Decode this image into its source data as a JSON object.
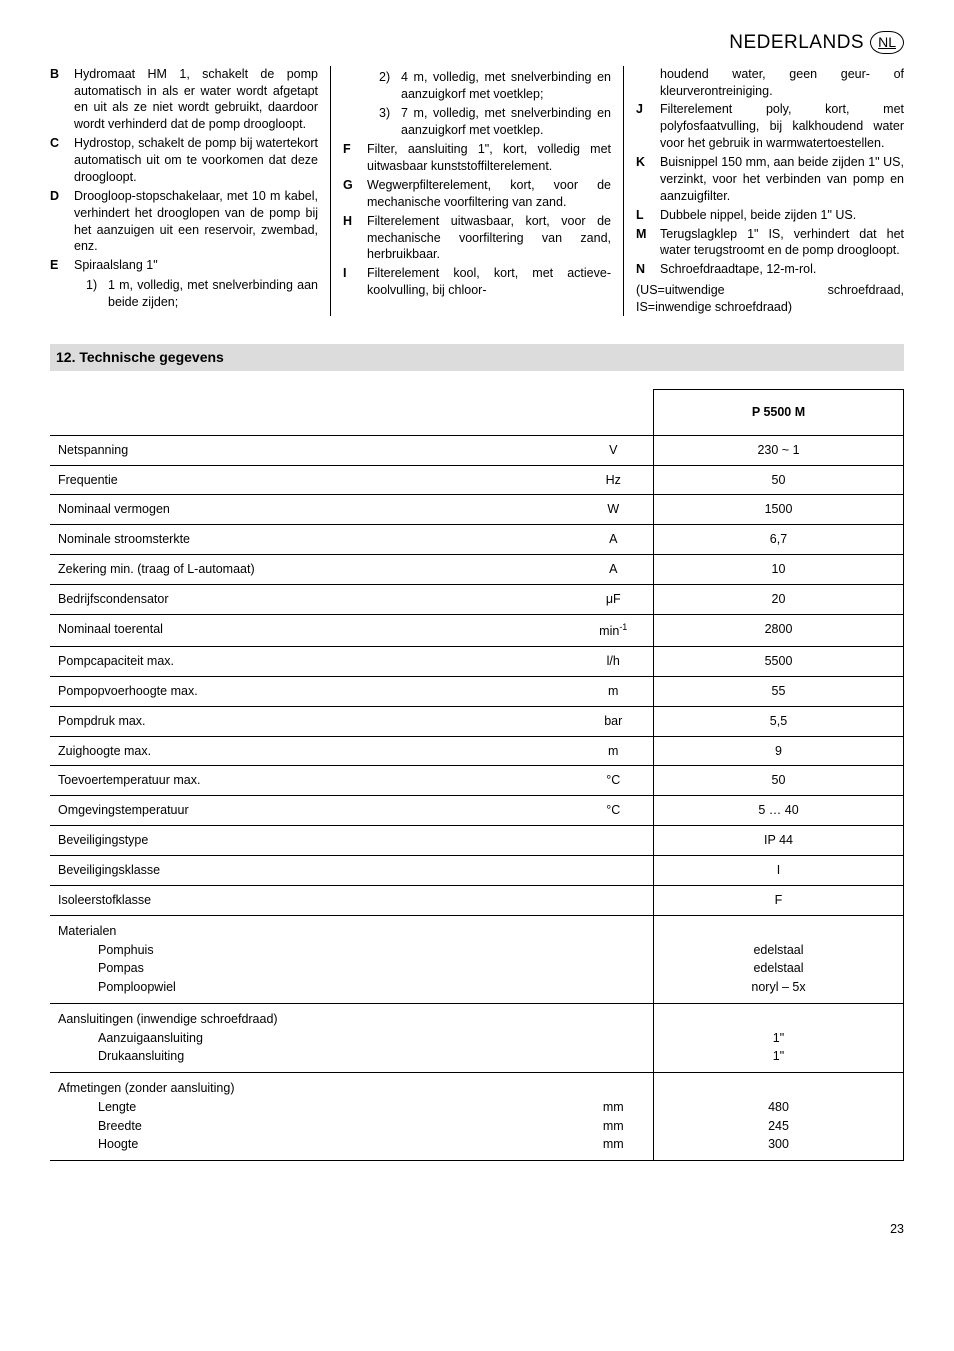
{
  "header": {
    "lang": "NEDERLANDS",
    "code": "NL"
  },
  "columns": [
    {
      "items": [
        {
          "key": "B",
          "title": "Hydromaat HM 1,",
          "desc": "schakelt de pomp automatisch in als er water wordt afgetapt en uit als ze niet wordt gebruikt, daardoor wordt verhinderd dat de pomp droogloopt."
        },
        {
          "key": "C",
          "title": "Hydrostop,",
          "desc": "schakelt de pomp bij watertekort automatisch uit om te voorkomen dat deze droogloopt."
        },
        {
          "key": "D",
          "title": "Droogloop-stopschakelaar,",
          "desc": "met 10 m kabel, verhindert het drooglopen van de pomp bij het aanzuigen uit een reservoir, zwembad, enz."
        },
        {
          "key": "E",
          "title": "Spiraalslang 1\"",
          "desc": "",
          "sub": [
            {
              "k": "1)",
              "t": "1 m, volledig, met snelverbinding aan beide zijden;"
            }
          ]
        }
      ]
    },
    {
      "items": [
        {
          "key": "",
          "title": "",
          "desc": "",
          "sub": [
            {
              "k": "2)",
              "t": "4 m, volledig, met snelverbinding en aanzuigkorf met voetklep;"
            },
            {
              "k": "3)",
              "t": "7 m, volledig, met snelverbinding en aanzuigkorf met voetklep."
            }
          ]
        },
        {
          "key": "F",
          "title": "Filter, aansluiting 1\", kort,",
          "desc": "volledig met uitwasbaar kunststoffilterelement."
        },
        {
          "key": "G",
          "title": "Wegwerpfilterelement, kort,",
          "desc": "voor de mechanische voorfiltering van zand."
        },
        {
          "key": "H",
          "title": "Filterelement uitwasbaar, kort,",
          "desc": "voor de mechanische voorfiltering van zand, herbruikbaar."
        },
        {
          "key": "I",
          "title": "Filterelement kool, kort,",
          "desc": "met actieve-koolvulling, bij chloor-"
        }
      ]
    },
    {
      "items": [
        {
          "key": "",
          "title": "",
          "desc": "houdend water, geen geur- of kleurverontreiniging."
        },
        {
          "key": "J",
          "title": "Filterelement poly, kort,",
          "desc": "met polyfosfaatvulling, bij kalkhoudend water voor het gebruik in warmwatertoestellen."
        },
        {
          "key": "K",
          "title": "Buisnippel 150 mm, aan beide zijden 1\" US, verzinkt, voor het verbinden van pomp en aanzuigfilter.",
          "desc": ""
        },
        {
          "key": "L",
          "title": "Dubbele nippel, beide zijden 1\" US.",
          "desc": ""
        },
        {
          "key": "M",
          "title": "Terugslagklep 1\" IS, verhindert dat het water terugstroomt en de pomp droogloopt.",
          "desc": ""
        },
        {
          "key": "N",
          "title": "Schroefdraadtape, 12-m-rol.",
          "desc": ""
        }
      ],
      "footer": "(US=uitwendige schroefdraad, IS=inwendige schroefdraad)"
    }
  ],
  "section": "12. Technische gegevens",
  "table": {
    "model": "P 5500 M",
    "rows": [
      {
        "label": "Netspanning",
        "unit": "V",
        "val": "230 ~ 1"
      },
      {
        "label": "Frequentie",
        "unit": "Hz",
        "val": "50"
      },
      {
        "label": "Nominaal vermogen",
        "unit": "W",
        "val": "1500"
      },
      {
        "label": "Nominale stroomsterkte",
        "unit": "A",
        "val": "6,7"
      },
      {
        "label": "Zekering min. (traag of L-automaat)",
        "unit": "A",
        "val": "10"
      },
      {
        "label": "Bedrijfscondensator",
        "unit": "μF",
        "val": "20"
      },
      {
        "label": "Nominaal toerental",
        "unit": "min⁻¹",
        "val": "2800"
      },
      {
        "label": "Pompcapaciteit max.",
        "unit": "l/h",
        "val": "5500"
      },
      {
        "label": "Pompopvoerhoogte max.",
        "unit": "m",
        "val": "55"
      },
      {
        "label": "Pompdruk max.",
        "unit": "bar",
        "val": "5,5"
      },
      {
        "label": "Zuighoogte max.",
        "unit": "m",
        "val": "9"
      },
      {
        "label": "Toevoertemperatuur max.",
        "unit": "°C",
        "val": "50"
      },
      {
        "label": "Omgevingstemperatuur",
        "unit": "°C",
        "val": "5 … 40"
      },
      {
        "label": "Beveiligingstype",
        "unit": "",
        "val": "IP 44"
      },
      {
        "label": "Beveiligingsklasse",
        "unit": "",
        "val": "I"
      },
      {
        "label": "Isoleerstofklasse",
        "unit": "",
        "val": "F"
      }
    ],
    "multi": [
      {
        "head": "Materialen",
        "subs": [
          "Pomphuis",
          "Pompas",
          "Pomploopwiel"
        ],
        "units": [
          "",
          "",
          ""
        ],
        "vals": [
          "edelstaal",
          "edelstaal",
          "noryl – 5x"
        ]
      },
      {
        "head": "Aansluitingen (inwendige schroefdraad)",
        "subs": [
          "Aanzuigaansluiting",
          "Drukaansluiting"
        ],
        "units": [
          "",
          ""
        ],
        "vals": [
          "1\"",
          "1\""
        ]
      },
      {
        "head": "Afmetingen (zonder aansluiting)",
        "subs": [
          "Lengte",
          "Breedte",
          "Hoogte"
        ],
        "units": [
          "mm",
          "mm",
          "mm"
        ],
        "vals": [
          "480",
          "245",
          "300"
        ]
      }
    ]
  },
  "page": "23"
}
